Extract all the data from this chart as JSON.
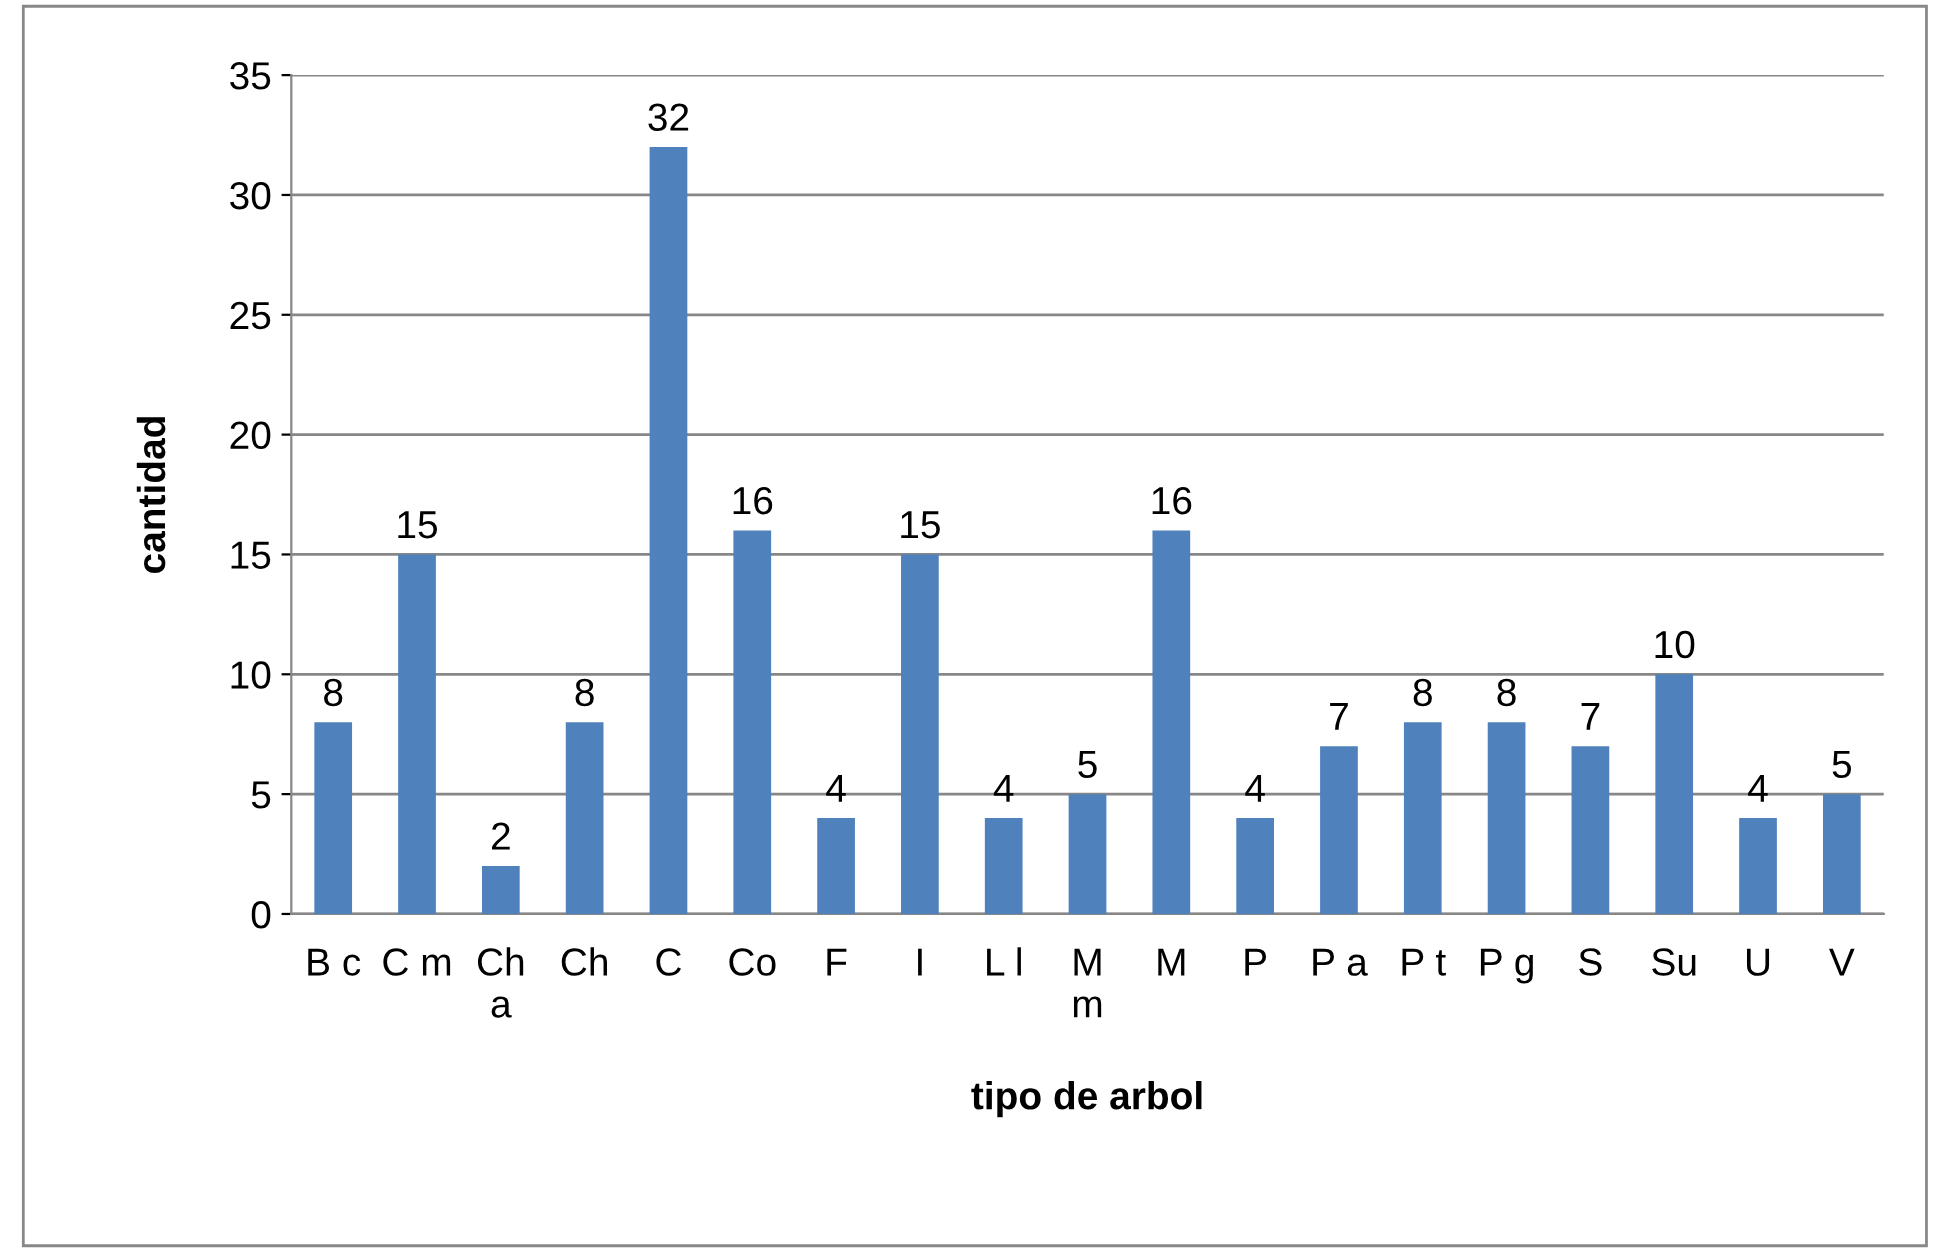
{
  "chart_data": {
    "type": "bar",
    "xlabel": "tipo de arbol",
    "ylabel": "cantidad",
    "categories": [
      "B c",
      "C m",
      "Ch\na",
      "Ch",
      "C",
      "Co",
      "F",
      "I",
      "L l",
      "M\nm",
      "M",
      "P",
      "P a",
      "P t",
      "P g",
      "S",
      "Su",
      "U",
      "V"
    ],
    "values": [
      8,
      15,
      2,
      8,
      32,
      16,
      4,
      15,
      4,
      5,
      16,
      4,
      7,
      8,
      8,
      7,
      10,
      4,
      5
    ],
    "color": "#4f81bd",
    "ylim": [
      0,
      35
    ],
    "yticks": [
      0,
      5,
      10,
      15,
      20,
      25,
      30,
      35
    ],
    "grid": "y",
    "data_labels": true
  }
}
